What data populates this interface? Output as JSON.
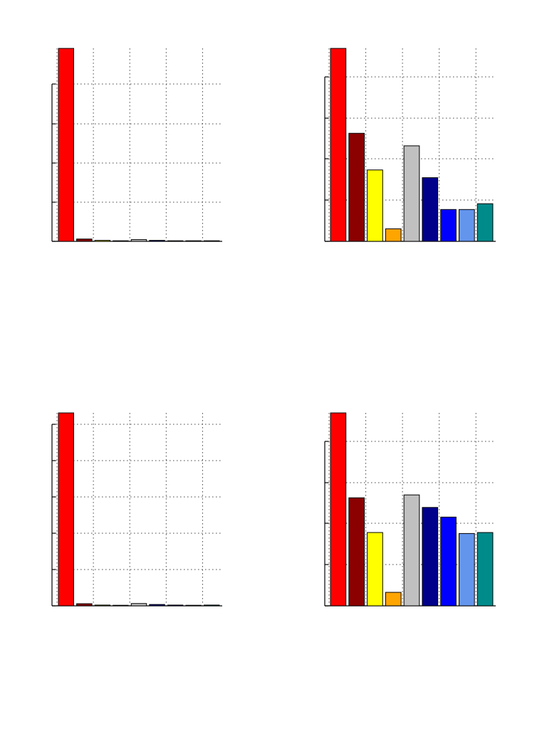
{
  "chart_data": [
    {
      "type": "bar",
      "values": [
        100,
        1.2,
        0.5,
        0.3,
        0.9,
        0.5,
        0.3,
        0.3,
        0.3
      ],
      "colors": [
        "#ff0000",
        "#8b0000",
        "#ffff00",
        "#ffa500",
        "#c0c0c0",
        "#00008b",
        "#0000ff",
        "#6495ed",
        "#008b8b"
      ],
      "ylim": [
        0,
        100
      ],
      "grid": true
    },
    {
      "type": "bar",
      "values": [
        100,
        56,
        37,
        6.5,
        49.5,
        33,
        16.5,
        16.5,
        19.5
      ],
      "colors": [
        "#ff0000",
        "#8b0000",
        "#ffff00",
        "#ffa500",
        "#c0c0c0",
        "#00008b",
        "#0000ff",
        "#6495ed",
        "#008b8b"
      ],
      "ylim": [
        0,
        100
      ],
      "grid": true
    },
    {
      "type": "bar",
      "values": [
        100,
        1.1,
        0.4,
        0.2,
        1.2,
        0.7,
        0.4,
        0.3,
        0.4
      ],
      "colors": [
        "#ff0000",
        "#8b0000",
        "#ffff00",
        "#ffa500",
        "#c0c0c0",
        "#00008b",
        "#0000ff",
        "#6495ed",
        "#008b8b"
      ],
      "ylim": [
        0,
        100
      ],
      "grid": true
    },
    {
      "type": "bar",
      "values": [
        100,
        56,
        38,
        7,
        57.5,
        51,
        46,
        37.5,
        38
      ],
      "colors": [
        "#ff0000",
        "#8b0000",
        "#ffff00",
        "#ffa500",
        "#c0c0c0",
        "#00008b",
        "#0000ff",
        "#6495ed",
        "#008b8b"
      ],
      "ylim": [
        0,
        100
      ],
      "grid": true
    }
  ]
}
